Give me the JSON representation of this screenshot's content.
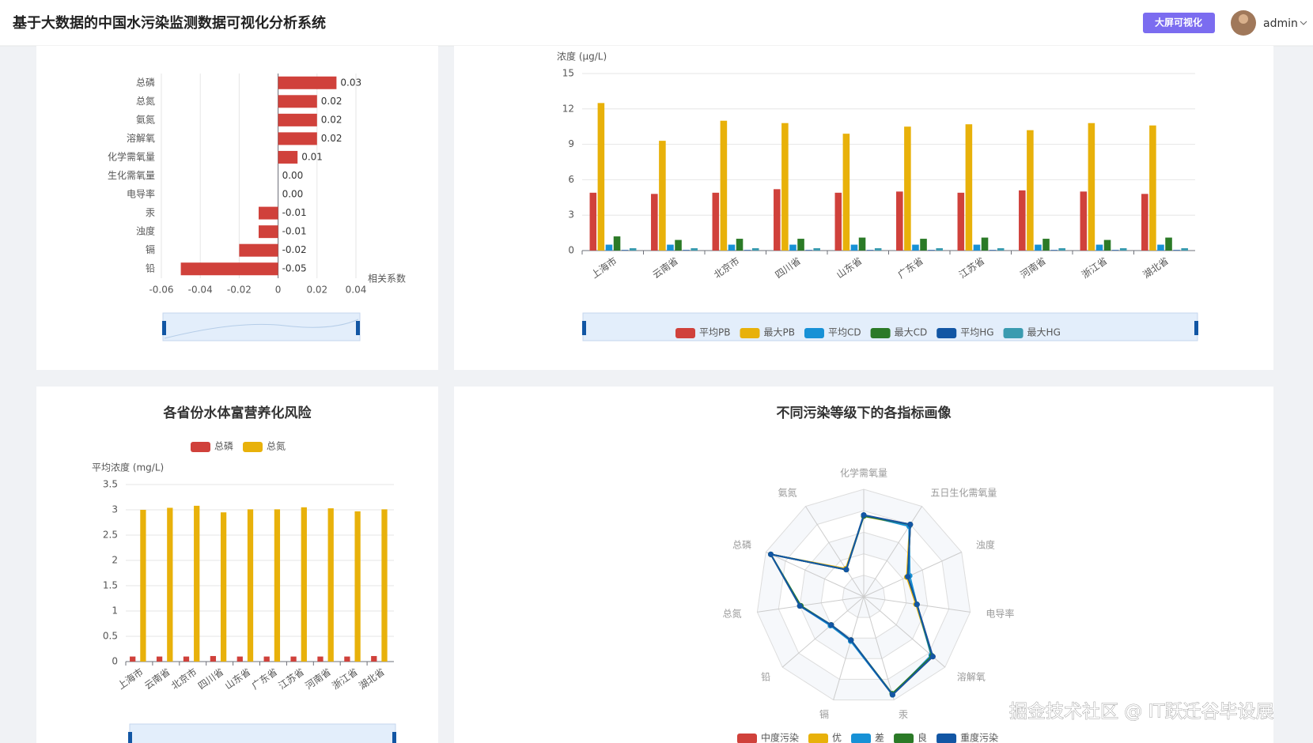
{
  "header": {
    "title": "基于大数据的中国水污染监测数据可视化分析系统",
    "button": "大屏可视化",
    "user": "admin"
  },
  "watermark": "掘金技术社区 @ IT跃迁谷毕设展",
  "chart_data": [
    {
      "type": "hbar",
      "categories": [
        "总磷",
        "总氮",
        "氨氮",
        "溶解氧",
        "化学需氧量",
        "生化需氧量",
        "电导率",
        "汞",
        "浊度",
        "镉",
        "铅"
      ],
      "values": [
        0.03,
        0.02,
        0.02,
        0.02,
        0.01,
        0,
        0,
        -0.01,
        -0.01,
        -0.02,
        -0.05
      ],
      "value_labels": [
        "0.03",
        "0.02",
        "0.02",
        "0.02",
        "0.01",
        "0.00",
        "0.00",
        "-0.01",
        "-0.01",
        "-0.02",
        "-0.05"
      ],
      "color": "#d0413b",
      "x_label": "相关系数",
      "xlim": [
        -0.06,
        0.04
      ],
      "xticks": [
        -0.06,
        -0.04,
        -0.02,
        0,
        0.02,
        0.04
      ],
      "grid": true
    },
    {
      "type": "bar",
      "y_label": "浓度 (μg/L)",
      "categories": [
        "上海市",
        "云南省",
        "北京市",
        "四川省",
        "山东省",
        "广东省",
        "江苏省",
        "河南省",
        "浙江省",
        "湖北省"
      ],
      "series": [
        {
          "name": "平均PB",
          "color": "#d0413b",
          "values": [
            4.9,
            4.8,
            4.9,
            5.2,
            4.9,
            5.0,
            4.9,
            5.1,
            5.0,
            4.8
          ]
        },
        {
          "name": "最大PB",
          "color": "#e8b10a",
          "values": [
            12.5,
            9.3,
            11.0,
            10.8,
            9.9,
            10.5,
            10.7,
            10.2,
            10.8,
            10.6
          ]
        },
        {
          "name": "平均CD",
          "color": "#1791d6",
          "values": [
            0.5,
            0.5,
            0.5,
            0.5,
            0.5,
            0.5,
            0.5,
            0.5,
            0.5,
            0.5
          ]
        },
        {
          "name": "最大CD",
          "color": "#2b7a27",
          "values": [
            1.2,
            0.9,
            1.0,
            1.0,
            1.1,
            1.0,
            1.1,
            1.0,
            0.9,
            1.1
          ]
        },
        {
          "name": "平均HG",
          "color": "#1256a4",
          "values": [
            0.05,
            0.05,
            0.05,
            0.05,
            0.05,
            0.05,
            0.05,
            0.05,
            0.05,
            0.05
          ]
        },
        {
          "name": "最大HG",
          "color": "#3a9bb0",
          "values": [
            0.2,
            0.2,
            0.2,
            0.2,
            0.2,
            0.2,
            0.2,
            0.2,
            0.2,
            0.2
          ]
        }
      ],
      "ylim": [
        0,
        15
      ],
      "yticks": [
        0,
        3,
        6,
        9,
        12,
        15
      ],
      "grid": true
    },
    {
      "type": "bar",
      "title": "各省份水体富营养化风险",
      "y_label": "平均浓度 (mg/L)",
      "categories": [
        "上海市",
        "云南省",
        "北京市",
        "四川省",
        "山东省",
        "广东省",
        "江苏省",
        "河南省",
        "浙江省",
        "湖北省"
      ],
      "series": [
        {
          "name": "总磷",
          "color": "#d0413b",
          "values": [
            0.1,
            0.1,
            0.1,
            0.11,
            0.1,
            0.1,
            0.1,
            0.1,
            0.1,
            0.11
          ]
        },
        {
          "name": "总氮",
          "color": "#e8b10a",
          "values": [
            3.0,
            3.04,
            3.08,
            2.95,
            3.01,
            3.01,
            3.05,
            3.03,
            2.97,
            3.01
          ]
        }
      ],
      "ylim": [
        0,
        3.5
      ],
      "yticks": [
        0,
        0.5,
        1,
        1.5,
        2,
        2.5,
        3,
        3.5
      ],
      "grid": true
    },
    {
      "type": "radar",
      "title": "不同污染等级下的各指标画像",
      "indicators": [
        "化学需氧量",
        "五日生化需氧量",
        "浊度",
        "电导率",
        "溶解氧",
        "汞",
        "镉",
        "铅",
        "总氮",
        "总磷",
        "氨氮"
      ],
      "rlim": [
        0,
        1
      ],
      "series": [
        {
          "name": "中度污染",
          "color": "#d0413b",
          "values": [
            0.76,
            0.8,
            0.45,
            0.5,
            0.85,
            0.95,
            0.42,
            0.4,
            0.6,
            0.95,
            0.3
          ]
        },
        {
          "name": "优",
          "color": "#e8b10a",
          "values": [
            0.75,
            0.79,
            0.44,
            0.49,
            0.84,
            0.95,
            0.42,
            0.4,
            0.6,
            0.95,
            0.31
          ]
        },
        {
          "name": "差",
          "color": "#1791d6",
          "values": [
            0.76,
            0.78,
            0.47,
            0.5,
            0.83,
            0.95,
            0.43,
            0.41,
            0.6,
            0.95,
            0.3
          ]
        },
        {
          "name": "良",
          "color": "#2b7a27",
          "values": [
            0.75,
            0.8,
            0.45,
            0.5,
            0.84,
            0.94,
            0.42,
            0.4,
            0.59,
            0.95,
            0.3
          ]
        },
        {
          "name": "重度污染",
          "color": "#1256a4",
          "values": [
            0.76,
            0.8,
            0.45,
            0.5,
            0.85,
            0.95,
            0.42,
            0.4,
            0.6,
            0.95,
            0.3
          ]
        }
      ]
    }
  ]
}
